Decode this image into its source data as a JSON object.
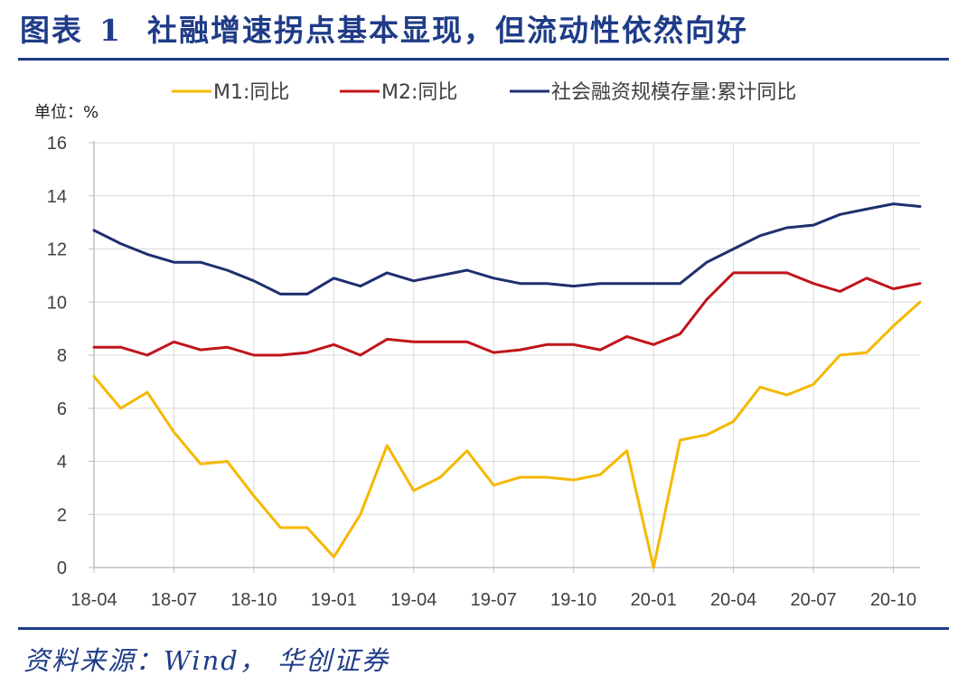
{
  "header": {
    "figure_label": "图表",
    "figure_number": "1",
    "title": "社融增速拐点基本显现，但流动性依然向好"
  },
  "source": "资料来源：Wind， 华创证券",
  "colors": {
    "brand": "#1f3c88",
    "m1": "#f5b800",
    "m2": "#c0151b",
    "tsf": "#1f2f6e"
  },
  "chart_data": {
    "type": "line",
    "unit_label": "单位：%",
    "categories": [
      "18-04",
      "18-05",
      "18-06",
      "18-07",
      "18-08",
      "18-09",
      "18-10",
      "18-11",
      "18-12",
      "19-01",
      "19-02",
      "19-03",
      "19-04",
      "19-05",
      "19-06",
      "19-07",
      "19-08",
      "19-09",
      "19-10",
      "19-11",
      "19-12",
      "20-01",
      "20-02",
      "20-03",
      "20-04",
      "20-05",
      "20-06",
      "20-07",
      "20-08",
      "20-09",
      "20-10",
      "20-11"
    ],
    "x_tick_labels": [
      "18-04",
      "18-07",
      "18-10",
      "19-01",
      "19-04",
      "19-07",
      "19-10",
      "20-01",
      "20-04",
      "20-07",
      "20-10"
    ],
    "y_ticks": [
      "0",
      "2",
      "4",
      "6",
      "8",
      "10",
      "12",
      "14",
      "16"
    ],
    "ylim": [
      0,
      16
    ],
    "grid": true,
    "legend_position": "top",
    "series": [
      {
        "name": "M1:同比",
        "key": "m1",
        "values": [
          7.2,
          6.0,
          6.6,
          5.1,
          3.9,
          4.0,
          2.7,
          1.5,
          1.5,
          0.4,
          2.0,
          4.6,
          2.9,
          3.4,
          4.4,
          3.1,
          3.4,
          3.4,
          3.3,
          3.5,
          4.4,
          0.0,
          4.8,
          5.0,
          5.5,
          6.8,
          6.5,
          6.9,
          8.0,
          8.1,
          9.1,
          10.0
        ]
      },
      {
        "name": "M2:同比",
        "key": "m2",
        "values": [
          8.3,
          8.3,
          8.0,
          8.5,
          8.2,
          8.3,
          8.0,
          8.0,
          8.1,
          8.4,
          8.0,
          8.6,
          8.5,
          8.5,
          8.5,
          8.1,
          8.2,
          8.4,
          8.4,
          8.2,
          8.7,
          8.4,
          8.8,
          10.1,
          11.1,
          11.1,
          11.1,
          10.7,
          10.4,
          10.9,
          10.5,
          10.7
        ]
      },
      {
        "name": "社会融资规模存量:累计同比",
        "key": "tsf",
        "values": [
          12.7,
          12.2,
          11.8,
          11.5,
          11.5,
          11.2,
          10.8,
          10.3,
          10.3,
          10.9,
          10.6,
          11.1,
          10.8,
          11.0,
          11.2,
          10.9,
          10.7,
          10.7,
          10.6,
          10.7,
          10.7,
          10.7,
          10.7,
          11.5,
          12.0,
          12.5,
          12.8,
          12.9,
          13.3,
          13.5,
          13.7,
          13.6
        ]
      }
    ]
  }
}
